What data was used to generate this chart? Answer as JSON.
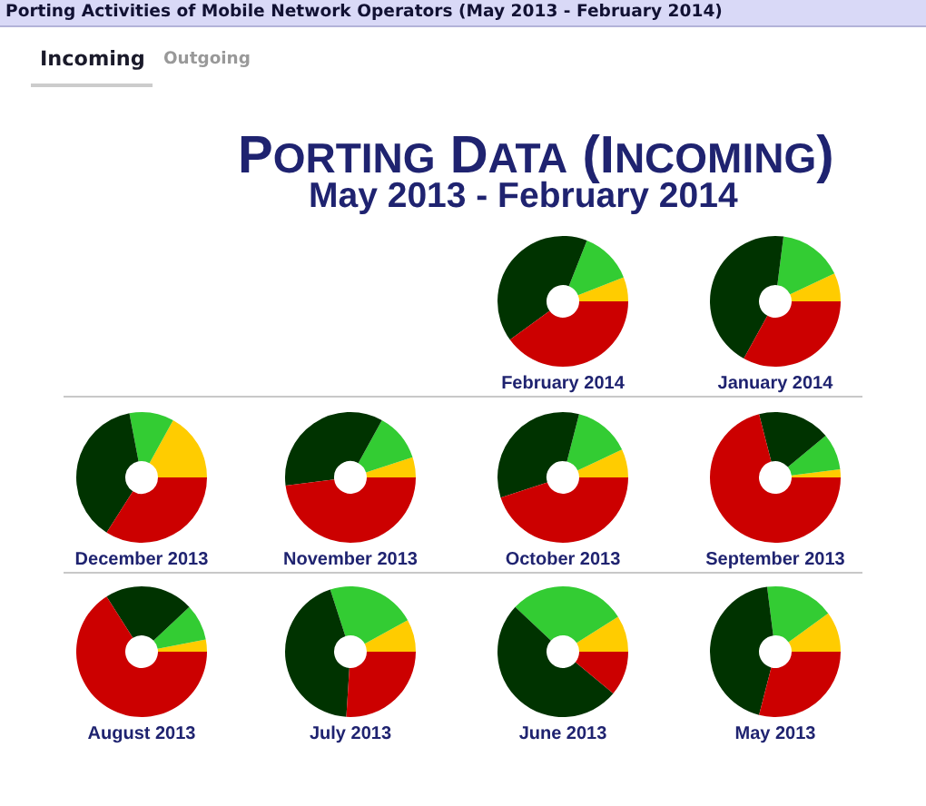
{
  "chart_data": [
    {
      "type": "other",
      "title": "PORTING DATA (INCOMING)",
      "subtitle": "May 2013 - February 2014",
      "annotations": [
        "Porting Activities of Mobile Network Operators (May 2013 - February 2014)",
        "Incoming",
        "Outgoing"
      ]
    },
    {
      "type": "donut",
      "title": "February 2014",
      "categories": [
        null,
        null,
        null,
        null
      ],
      "values": [
        6,
        13,
        41,
        40
      ],
      "colors": [
        "#ffcc00",
        "#33cc33",
        "#003300",
        "#cc0000"
      ]
    },
    {
      "type": "donut",
      "title": "January 2014",
      "categories": [
        null,
        null,
        null,
        null
      ],
      "values": [
        7,
        16,
        44,
        33
      ],
      "colors": [
        "#ffcc00",
        "#33cc33",
        "#003300",
        "#cc0000"
      ]
    },
    {
      "type": "donut",
      "title": "December 2013",
      "categories": [
        null,
        null,
        null,
        null
      ],
      "values": [
        17,
        11,
        38,
        34
      ],
      "colors": [
        "#ffcc00",
        "#33cc33",
        "#003300",
        "#cc0000"
      ]
    },
    {
      "type": "donut",
      "title": "November 2013",
      "categories": [
        null,
        null,
        null,
        null
      ],
      "values": [
        5,
        12,
        35,
        48
      ],
      "colors": [
        "#ffcc00",
        "#33cc33",
        "#003300",
        "#cc0000"
      ]
    },
    {
      "type": "donut",
      "title": "October 2013",
      "categories": [
        null,
        null,
        null,
        null
      ],
      "values": [
        7,
        14,
        34,
        45
      ],
      "colors": [
        "#ffcc00",
        "#33cc33",
        "#003300",
        "#cc0000"
      ]
    },
    {
      "type": "donut",
      "title": "September 2013",
      "categories": [
        null,
        null,
        null,
        null
      ],
      "values": [
        2,
        9,
        18,
        71
      ],
      "colors": [
        "#ffcc00",
        "#33cc33",
        "#003300",
        "#cc0000"
      ]
    },
    {
      "type": "donut",
      "title": "August 2013",
      "categories": [
        null,
        null,
        null,
        null
      ],
      "values": [
        3,
        9,
        22,
        66
      ],
      "colors": [
        "#ffcc00",
        "#33cc33",
        "#003300",
        "#cc0000"
      ]
    },
    {
      "type": "donut",
      "title": "July 2013",
      "categories": [
        null,
        null,
        null,
        null
      ],
      "values": [
        8,
        22,
        44,
        26
      ],
      "colors": [
        "#ffcc00",
        "#33cc33",
        "#003300",
        "#cc0000"
      ]
    },
    {
      "type": "donut",
      "title": "June 2013",
      "categories": [
        null,
        null,
        null,
        null
      ],
      "values": [
        9,
        29,
        51,
        11
      ],
      "colors": [
        "#ffcc00",
        "#33cc33",
        "#003300",
        "#cc0000"
      ]
    },
    {
      "type": "donut",
      "title": "May 2013",
      "categories": [
        null,
        null,
        null,
        null
      ],
      "values": [
        10,
        17,
        44,
        29
      ],
      "colors": [
        "#ffcc00",
        "#33cc33",
        "#003300",
        "#cc0000"
      ]
    }
  ]
}
